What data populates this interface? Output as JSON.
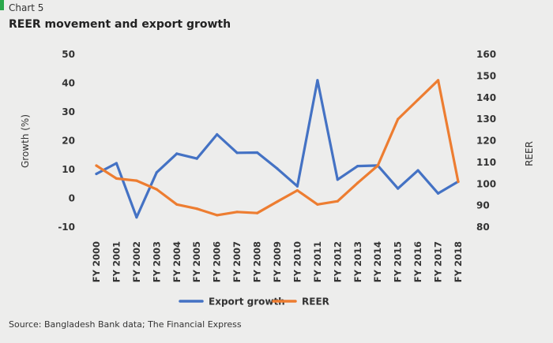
{
  "header": {
    "chart_number": "Chart 5",
    "title": "REER movement and export growth"
  },
  "footer": {
    "source": "Source: Bangladesh Bank data; The Financial Express"
  },
  "colors": {
    "background": "#ededec",
    "accent": "#2aa84a",
    "export_growth": "#4472c4",
    "reer": "#ed7d31"
  },
  "chart_data": {
    "type": "line",
    "title": "REER movement and export growth",
    "x": [
      "FY 2000",
      "FY 2001",
      "FY 2002",
      "FY 2003",
      "FY 2004",
      "FY 2005",
      "FY 2006",
      "FY 2007",
      "FY 2008",
      "FY 2009",
      "FY 2010",
      "FY 2011",
      "FY 2012",
      "FY 2013",
      "FY 2014",
      "FY 2015",
      "FY 2016",
      "FY 2017",
      "FY 2018"
    ],
    "ylabel_left": "Growth (%)",
    "ylabel_right": "REER",
    "ylim_left": [
      -10,
      50
    ],
    "yticks_left": [
      -10,
      0,
      10,
      20,
      30,
      40,
      50
    ],
    "ylim_right": [
      80,
      160
    ],
    "yticks_right": [
      80,
      90,
      100,
      110,
      120,
      130,
      140,
      150,
      160
    ],
    "grid": false,
    "legend_position": "bottom",
    "series": [
      {
        "name": "Export growth",
        "axis": "left",
        "values": [
          8.5,
          12.2,
          -6.6,
          9.0,
          15.5,
          13.8,
          22.2,
          15.8,
          15.9,
          10.3,
          4.2,
          41.0,
          6.5,
          11.2,
          11.4,
          3.4,
          9.7,
          1.7,
          5.8
        ]
      },
      {
        "name": "REER",
        "axis": "right",
        "values": [
          108.5,
          102.5,
          101.5,
          97.5,
          90.5,
          88.5,
          85.5,
          87.0,
          86.5,
          91.8,
          97.0,
          90.5,
          92.0,
          100.5,
          108.5,
          130.0,
          139.0,
          148.0,
          101.0
        ]
      }
    ]
  }
}
